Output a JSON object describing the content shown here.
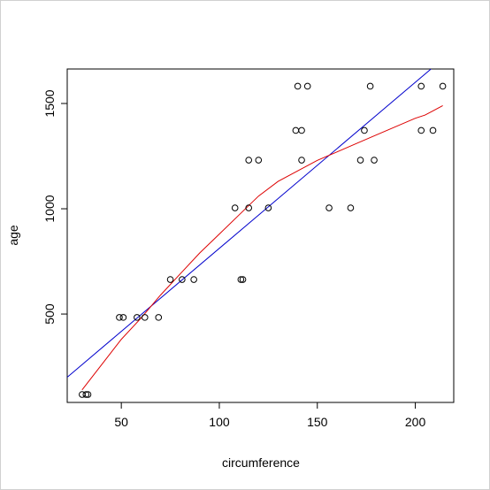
{
  "chart_data": {
    "type": "scatter",
    "title": "",
    "xlabel": "circumference",
    "ylabel": "age",
    "xlim": [
      22.4,
      219.6
    ],
    "ylim": [
      80.2,
      1663.8
    ],
    "x_ticks": [
      50,
      100,
      150,
      200
    ],
    "y_ticks": [
      500,
      1000,
      1500
    ],
    "grid": false,
    "points": [
      {
        "x": 30,
        "y": 118
      },
      {
        "x": 32,
        "y": 118
      },
      {
        "x": 33,
        "y": 118
      },
      {
        "x": 49,
        "y": 484
      },
      {
        "x": 51,
        "y": 484
      },
      {
        "x": 58,
        "y": 484
      },
      {
        "x": 62,
        "y": 484
      },
      {
        "x": 69,
        "y": 484
      },
      {
        "x": 75,
        "y": 664
      },
      {
        "x": 81,
        "y": 664
      },
      {
        "x": 87,
        "y": 664
      },
      {
        "x": 108,
        "y": 1004
      },
      {
        "x": 111,
        "y": 664
      },
      {
        "x": 112,
        "y": 664
      },
      {
        "x": 115,
        "y": 1004
      },
      {
        "x": 115,
        "y": 1231
      },
      {
        "x": 120,
        "y": 1231
      },
      {
        "x": 125,
        "y": 1004
      },
      {
        "x": 139,
        "y": 1372
      },
      {
        "x": 140,
        "y": 1582
      },
      {
        "x": 142,
        "y": 1372
      },
      {
        "x": 142,
        "y": 1231
      },
      {
        "x": 145,
        "y": 1582
      },
      {
        "x": 156,
        "y": 1004
      },
      {
        "x": 167,
        "y": 1004
      },
      {
        "x": 172,
        "y": 1231
      },
      {
        "x": 174,
        "y": 1372
      },
      {
        "x": 177,
        "y": 1582
      },
      {
        "x": 179,
        "y": 1231
      },
      {
        "x": 203,
        "y": 1372
      },
      {
        "x": 203,
        "y": 1582
      },
      {
        "x": 209,
        "y": 1372
      },
      {
        "x": 214,
        "y": 1582
      }
    ],
    "series": [
      {
        "kind": "fit-line",
        "color": "#0000cc",
        "x": [
          22.4,
          208
        ],
        "y": [
          200,
          1663.8
        ]
      },
      {
        "kind": "smoother",
        "color": "#dd0000",
        "x": [
          30,
          40,
          50,
          60,
          70,
          80,
          90,
          100,
          110,
          120,
          130,
          140,
          150,
          160,
          170,
          180,
          190,
          200,
          205,
          214
        ],
        "y": [
          140,
          260,
          380,
          480,
          590,
          690,
          790,
          880,
          970,
          1060,
          1130,
          1180,
          1230,
          1270,
          1310,
          1350,
          1390,
          1430,
          1445,
          1490
        ]
      }
    ]
  }
}
